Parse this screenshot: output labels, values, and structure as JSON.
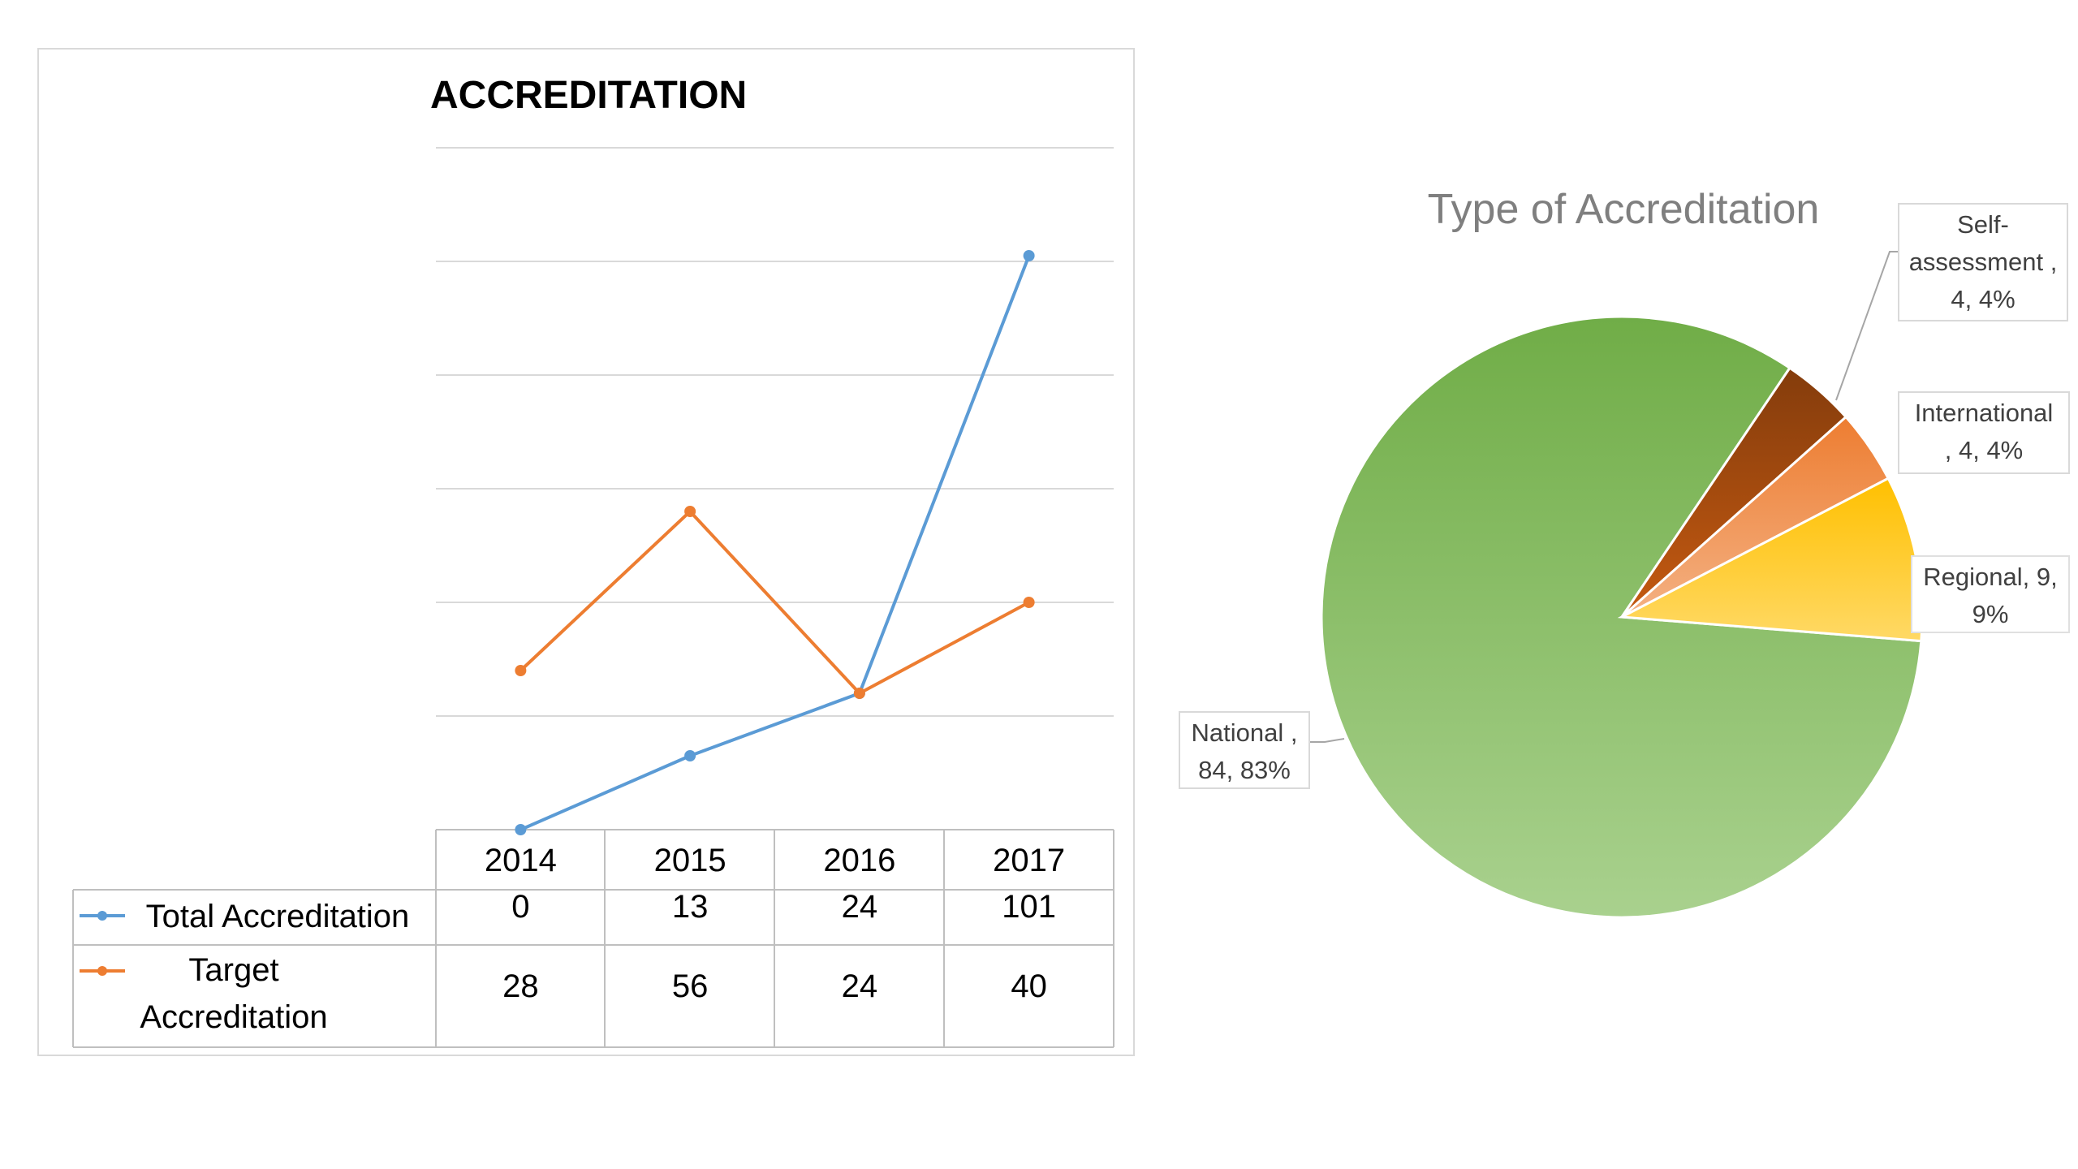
{
  "line_chart": {
    "legend_marker_colors": [
      "#5b9bd5",
      "#ed7d31"
    ]
  },
  "pie_chart": {
    "label_boxes": [
      "Self-\nassessment ,\n4, 4%",
      "International\n, 4, 4%",
      "Regional, 9,\n9%",
      "National ,\n84, 83%"
    ]
  },
  "chart_data": [
    {
      "type": "line",
      "title": "ACCREDITATION",
      "categories": [
        "2014",
        "2015",
        "2016",
        "2017"
      ],
      "series": [
        {
          "name": "Total Accreditation",
          "values": [
            0,
            13,
            24,
            101
          ],
          "color": "#5b9bd5"
        },
        {
          "name": "Target Accreditation",
          "values": [
            28,
            56,
            24,
            40
          ],
          "color": "#ed7d31"
        }
      ],
      "ylim": [
        0,
        120
      ],
      "grid": true,
      "legend": "data-table"
    },
    {
      "type": "pie",
      "title": "Type of Accreditation",
      "slices": [
        {
          "name": "National",
          "value": 84,
          "percent": 83,
          "colors": [
            "#70ad47",
            "#a9d18e"
          ]
        },
        {
          "name": "Self-assessment",
          "value": 4,
          "percent": 4,
          "colors": [
            "#843c0c",
            "#c55a11"
          ]
        },
        {
          "name": "International",
          "value": 4,
          "percent": 4,
          "colors": [
            "#ed7d31",
            "#f4b183"
          ]
        },
        {
          "name": "Regional",
          "value": 9,
          "percent": 9,
          "colors": [
            "#ffc000",
            "#ffd966"
          ]
        }
      ]
    }
  ]
}
